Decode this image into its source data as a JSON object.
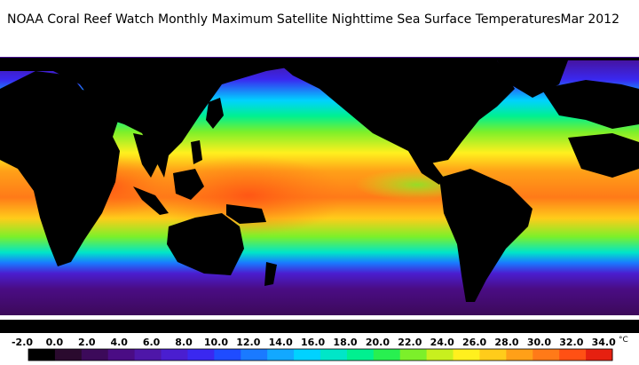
{
  "title": "NOAA Coral Reef Watch Monthly Maximum Satellite Nighttime Sea Surface Temperatures",
  "date": "Mar 2012",
  "legend": {
    "unit": "°C",
    "labels": [
      "-2.0",
      "0.0",
      "2.0",
      "4.0",
      "6.0",
      "8.0",
      "10.0",
      "12.0",
      "14.0",
      "16.0",
      "18.0",
      "20.0",
      "22.0",
      "24.0",
      "26.0",
      "28.0",
      "30.0",
      "32.0",
      "34.0"
    ],
    "colors": [
      "#000000",
      "#2a0a2e",
      "#3c0a5a",
      "#4a0c84",
      "#4e16a8",
      "#4a1ed0",
      "#3a28f0",
      "#1f4cff",
      "#1a7aff",
      "#12a8ff",
      "#00d2ff",
      "#00e6c8",
      "#00f090",
      "#28f050",
      "#7cf02a",
      "#c8f01e",
      "#fff01e",
      "#ffcc1a",
      "#ffa018",
      "#ff7a18",
      "#ff5014",
      "#e62010"
    ]
  },
  "colors": {
    "land": "#000000",
    "ice": "#ffffff",
    "background": "#ffffff"
  }
}
